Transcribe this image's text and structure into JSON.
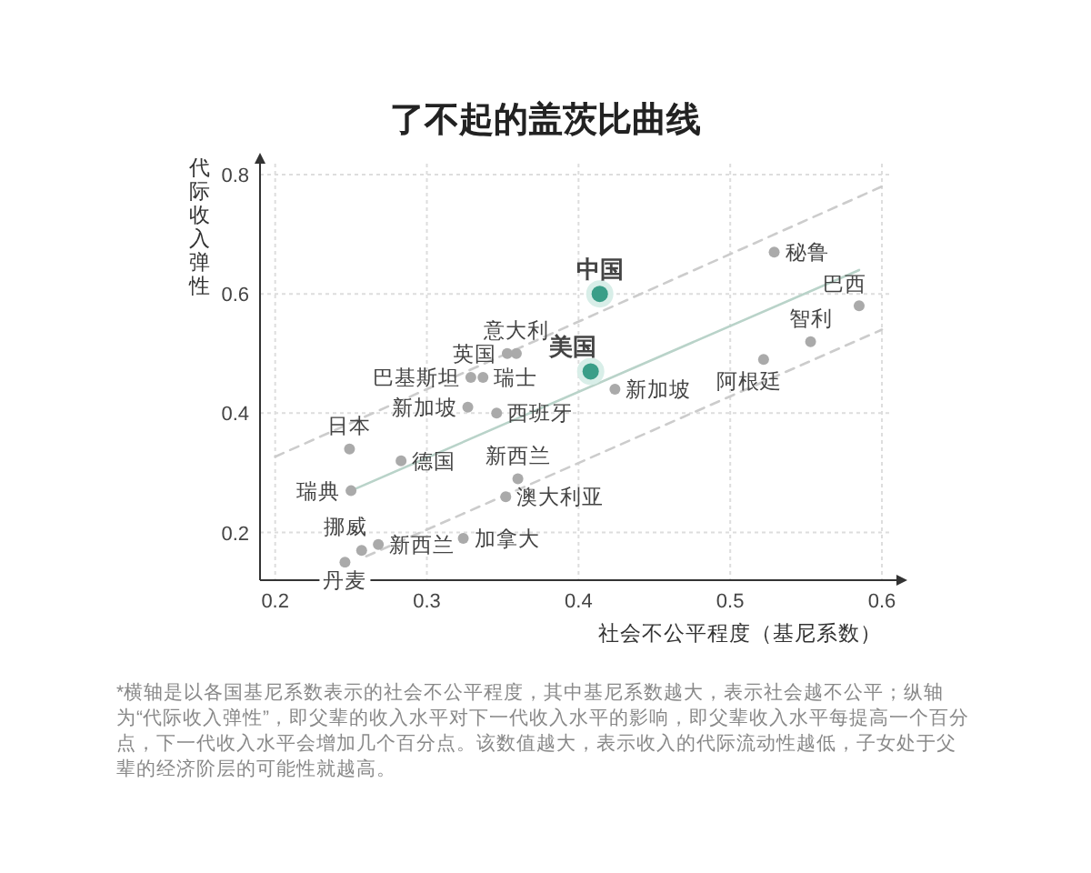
{
  "chart_data": {
    "type": "scatter",
    "title": "了不起的盖茨比曲线",
    "xlabel": "社会不公平程度（基尼系数）",
    "ylabel": "代际收入弹性",
    "xlim": [
      0.19,
      0.6
    ],
    "ylim": [
      0.12,
      0.8
    ],
    "xticks": [
      0.2,
      0.3,
      0.4,
      0.5,
      0.6
    ],
    "yticks": [
      0.2,
      0.4,
      0.6,
      0.8
    ],
    "grid": true,
    "series": [
      {
        "type": "scatter",
        "marker": "circle",
        "color": "#aaaaaa",
        "x": [
          0.529,
          0.585,
          0.553,
          0.522,
          0.424,
          0.359,
          0.353,
          0.337,
          0.329,
          0.327,
          0.346,
          0.249,
          0.283,
          0.36,
          0.352,
          0.25,
          0.324,
          0.268,
          0.257,
          0.246
        ],
        "values": [
          0.67,
          0.58,
          0.52,
          0.49,
          0.44,
          0.5,
          0.5,
          0.46,
          0.46,
          0.41,
          0.4,
          0.34,
          0.32,
          0.29,
          0.26,
          0.27,
          0.19,
          0.18,
          0.17,
          0.15
        ]
      },
      {
        "type": "scatter",
        "marker": "circle",
        "color": "#3a9e88",
        "x": [
          0.414,
          0.408
        ],
        "values": [
          0.6,
          0.47
        ]
      },
      {
        "type": "line",
        "marker": "none",
        "color": "#b9d3c9",
        "line_style": "solid",
        "x": [
          0.25,
          0.585
        ],
        "values": [
          0.27,
          0.64
        ]
      },
      {
        "type": "line",
        "marker": "none",
        "color": "#cccccc",
        "line_style": "dashed",
        "x": [
          0.2,
          0.6
        ],
        "values": [
          0.327,
          0.78
        ]
      },
      {
        "type": "line",
        "marker": "none",
        "color": "#cccccc",
        "line_style": "dashed",
        "x": [
          0.26,
          0.6
        ],
        "values": [
          0.16,
          0.54
        ]
      }
    ],
    "annotations": [
      {
        "text": "中国",
        "x": 0.414,
        "y": 0.6
      },
      {
        "text": "美国",
        "x": 0.408,
        "y": 0.47
      },
      {
        "text": "秘鲁",
        "x": 0.529,
        "y": 0.67
      },
      {
        "text": "巴西",
        "x": 0.585,
        "y": 0.58
      },
      {
        "text": "智利",
        "x": 0.553,
        "y": 0.52
      },
      {
        "text": "阿根廷",
        "x": 0.522,
        "y": 0.49
      },
      {
        "text": "新加坡",
        "x": 0.424,
        "y": 0.44
      },
      {
        "text": "意大利",
        "x": 0.359,
        "y": 0.5
      },
      {
        "text": "英国",
        "x": 0.353,
        "y": 0.5
      },
      {
        "text": "瑞士",
        "x": 0.337,
        "y": 0.46
      },
      {
        "text": "巴基斯坦",
        "x": 0.329,
        "y": 0.46
      },
      {
        "text": "新加坡",
        "x": 0.327,
        "y": 0.41
      },
      {
        "text": "西班牙",
        "x": 0.346,
        "y": 0.4
      },
      {
        "text": "日本",
        "x": 0.249,
        "y": 0.34
      },
      {
        "text": "德国",
        "x": 0.283,
        "y": 0.32
      },
      {
        "text": "新西兰",
        "x": 0.36,
        "y": 0.29
      },
      {
        "text": "澳大利亚",
        "x": 0.352,
        "y": 0.26
      },
      {
        "text": "瑞典",
        "x": 0.25,
        "y": 0.27
      },
      {
        "text": "加拿大",
        "x": 0.324,
        "y": 0.19
      },
      {
        "text": "新西兰",
        "x": 0.268,
        "y": 0.18
      },
      {
        "text": "挪威",
        "x": 0.257,
        "y": 0.17
      },
      {
        "text": "丹麦",
        "x": 0.246,
        "y": 0.15
      },
      "*横轴是以各国基尼系数表示的社会不公平程度，其中基尼系数越大，表示社会越不公平；纵轴为“代际收入弹性”，即父辈的收入水平对下一代收入水平的影响，即父辈收入水平每提高一个百分点，下一代收入水平会增加几个百分点。该数值越大，表示收入的代际流动性越低，子女处于父辈的经济阶层的可能性就越高。"
    ]
  }
}
